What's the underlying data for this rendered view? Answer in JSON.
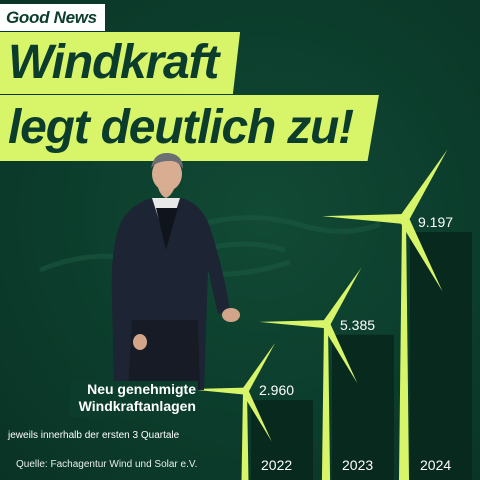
{
  "badge": "Good News",
  "headline": {
    "line1": "Windkraft",
    "line2": "legt deutlich zu!"
  },
  "caption": {
    "line1": "Neu genehmigte",
    "line2": "Windkraftanlagen"
  },
  "subtitle": "jeweils innerhalb der ersten 3 Quartale",
  "source": "Quelle: Fachagentur Wind und Solar e.V.",
  "colors": {
    "background": "#0c3d2c",
    "accent": "#d8f56a",
    "bar": "#082a1e"
  },
  "chart_data": {
    "type": "bar",
    "title": "Neu genehmigte Windkraftanlagen",
    "subtitle": "jeweils innerhalb der ersten 3 Quartale",
    "categories": [
      "2022",
      "2023",
      "2024"
    ],
    "value_labels": [
      "2.960",
      "5.385",
      "9.197"
    ],
    "values": [
      2960,
      5385,
      9197
    ],
    "xlabel": "",
    "ylabel": "",
    "grid": false,
    "legend": "none"
  }
}
